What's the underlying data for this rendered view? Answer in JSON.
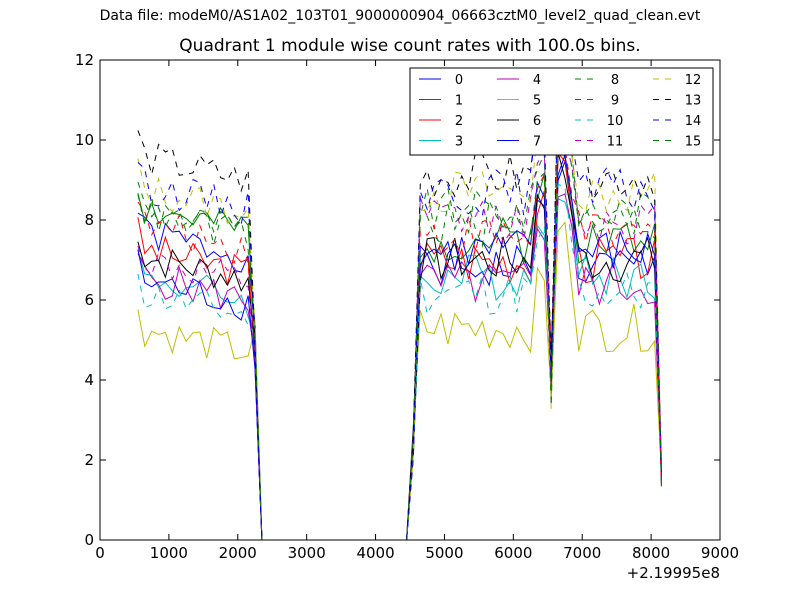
{
  "header": {
    "suptitle": "Data file: modeM0/AS1A02_103T01_9000000904_06663cztM0_level2_quad_clean.evt",
    "title": "Quadrant 1 module wise count rates with 100.0s bins."
  },
  "chart_data": {
    "type": "line",
    "title": "Quadrant 1 module wise count rates with 100.0s bins.",
    "xlabel": "",
    "ylabel": "",
    "x_offset_label": "+2.19995e8",
    "xlim": [
      0,
      9000
    ],
    "ylim": [
      0,
      12
    ],
    "xticks": [
      0,
      1000,
      2000,
      3000,
      4000,
      5000,
      6000,
      7000,
      8000,
      9000
    ],
    "yticks": [
      0,
      2,
      4,
      6,
      8,
      10,
      12
    ],
    "legend_position": "top-right",
    "legend_columns": 4,
    "x": [
      550,
      650,
      750,
      850,
      950,
      1050,
      1150,
      1250,
      1350,
      1450,
      1550,
      1650,
      1750,
      1850,
      1950,
      2050,
      2150,
      2250,
      2350,
      2450,
      2550,
      2650,
      2750,
      2850,
      2950,
      3050,
      3150,
      3250,
      3350,
      3450,
      3550,
      3650,
      3750,
      3850,
      3950,
      4050,
      4150,
      4250,
      4350,
      4450,
      4550,
      4650,
      4750,
      4850,
      4950,
      5050,
      5150,
      5250,
      5350,
      5450,
      5550,
      5650,
      5750,
      5850,
      5950,
      6050,
      6150,
      6250,
      6350,
      6450,
      6550,
      6650,
      6750,
      6850,
      6950,
      7050,
      7150,
      7250,
      7350,
      7450,
      7550,
      7650,
      7750,
      7850,
      7950,
      8050,
      8150
    ],
    "gap_start_index": 17,
    "gap_end_index": 39,
    "series": [
      {
        "name": "0",
        "color": "#0000ff",
        "dashed": false,
        "base1": 7.4,
        "base2": 6.8,
        "seed": 1
      },
      {
        "name": "1",
        "color": "#008000",
        "dashed": false,
        "base1": 8.0,
        "base2": 7.5,
        "seed": 2
      },
      {
        "name": "2",
        "color": "#ff0000",
        "dashed": false,
        "base1": 7.0,
        "base2": 7.0,
        "seed": 3
      },
      {
        "name": "3",
        "color": "#00bfbf",
        "dashed": false,
        "base1": 6.3,
        "base2": 6.6,
        "seed": 4
      },
      {
        "name": "4",
        "color": "#bf00bf",
        "dashed": false,
        "base1": 6.3,
        "base2": 6.4,
        "seed": 5
      },
      {
        "name": "5",
        "color": "#bfbf00",
        "dashed": false,
        "base1": 5.0,
        "base2": 5.3,
        "seed": 6
      },
      {
        "name": "6",
        "color": "#000000",
        "dashed": false,
        "base1": 6.8,
        "base2": 7.0,
        "seed": 7
      },
      {
        "name": "7",
        "color": "#0000ff",
        "dashed": false,
        "base1": 6.2,
        "base2": 7.2,
        "seed": 8
      },
      {
        "name": "8",
        "color": "#008000",
        "dashed": true,
        "base1": 8.0,
        "base2": 8.2,
        "seed": 9
      },
      {
        "name": "9",
        "color": "#ff0000",
        "dashed": true,
        "base1": 7.6,
        "base2": 7.6,
        "seed": 10
      },
      {
        "name": "10",
        "color": "#00bfbf",
        "dashed": true,
        "base1": 5.9,
        "base2": 6.2,
        "seed": 11
      },
      {
        "name": "11",
        "color": "#bf00bf",
        "dashed": true,
        "base1": 6.7,
        "base2": 8.0,
        "seed": 12
      },
      {
        "name": "12",
        "color": "#bfbf00",
        "dashed": true,
        "base1": 8.5,
        "base2": 8.7,
        "seed": 13
      },
      {
        "name": "13",
        "color": "#000000",
        "dashed": true,
        "base1": 9.3,
        "base2": 9.1,
        "seed": 14
      },
      {
        "name": "14",
        "color": "#0000ff",
        "dashed": true,
        "base1": 8.6,
        "base2": 8.7,
        "seed": 15
      },
      {
        "name": "15",
        "color": "#008000",
        "dashed": true,
        "base1": 7.9,
        "base2": 7.9,
        "seed": 16
      }
    ]
  }
}
